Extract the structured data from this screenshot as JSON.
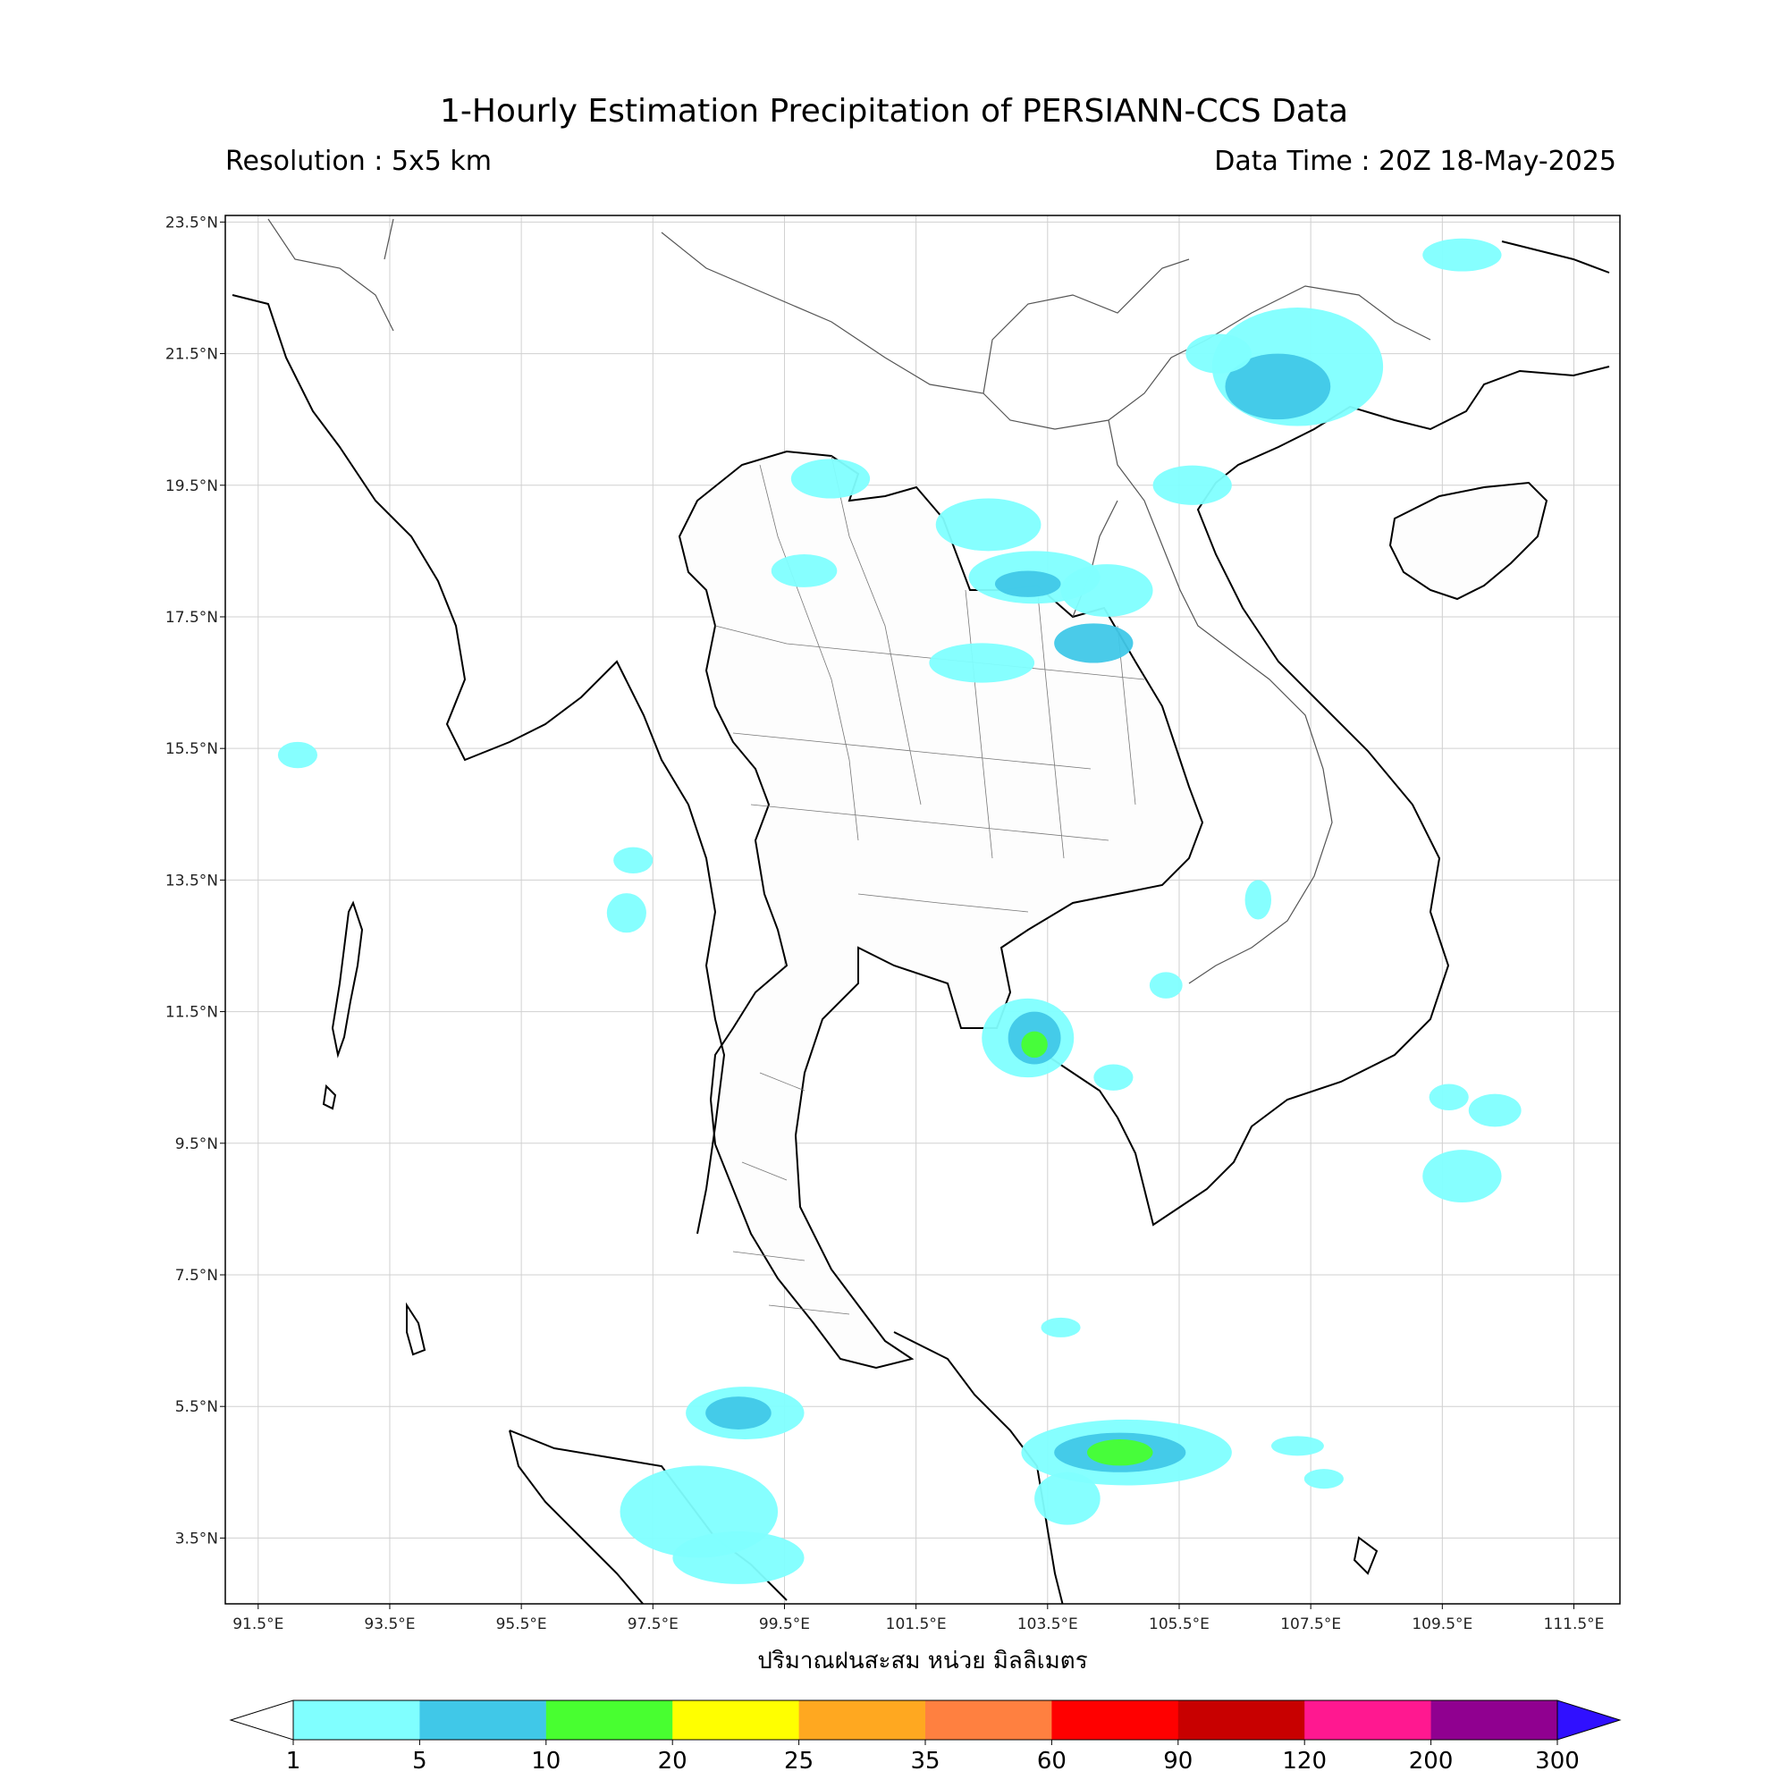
{
  "title": "1-Hourly Estimation Precipitation of PERSIANN-CCS Data",
  "resolution": "Resolution : 5x5 km",
  "data_time": "Data Time : 20Z 18-May-2025",
  "map": {
    "lon_range": [
      91.0,
      112.2
    ],
    "lat_range": [
      2.5,
      23.6
    ],
    "lon_ticks": [
      {
        "value": 91.5,
        "label": "91.5°E"
      },
      {
        "value": 93.5,
        "label": "93.5°E"
      },
      {
        "value": 95.5,
        "label": "95.5°E"
      },
      {
        "value": 97.5,
        "label": "97.5°E"
      },
      {
        "value": 99.5,
        "label": "99.5°E"
      },
      {
        "value": 101.5,
        "label": "101.5°E"
      },
      {
        "value": 103.5,
        "label": "103.5°E"
      },
      {
        "value": 105.5,
        "label": "105.5°E"
      },
      {
        "value": 107.5,
        "label": "107.5°E"
      },
      {
        "value": 109.5,
        "label": "109.5°E"
      },
      {
        "value": 111.5,
        "label": "111.5°E"
      }
    ],
    "lat_ticks": [
      {
        "value": 23.5,
        "label": "23.5°N"
      },
      {
        "value": 21.5,
        "label": "21.5°N"
      },
      {
        "value": 19.5,
        "label": "19.5°N"
      },
      {
        "value": 17.5,
        "label": "17.5°N"
      },
      {
        "value": 15.5,
        "label": "15.5°N"
      },
      {
        "value": 13.5,
        "label": "13.5°N"
      },
      {
        "value": 11.5,
        "label": "11.5°N"
      },
      {
        "value": 9.5,
        "label": "9.5°N"
      },
      {
        "value": 7.5,
        "label": "7.5°N"
      },
      {
        "value": 5.5,
        "label": "5.5°N"
      },
      {
        "value": 3.5,
        "label": "3.5°N"
      }
    ],
    "grid": true,
    "xlabel": "ปริมาณฝนสะสม หน่วย มิลลิเมตร"
  },
  "colorbar": {
    "levels": [
      "1",
      "5",
      "10",
      "20",
      "25",
      "35",
      "60",
      "90",
      "120",
      "200",
      "300"
    ],
    "colors": [
      "#80ffff",
      "#40c8e8",
      "#48ff30",
      "#ffff00",
      "#ffa820",
      "#ff8040",
      "#ff0000",
      "#c80000",
      "#ff1890",
      "#900090"
    ],
    "under_color": "#ffffff",
    "over_color": "#3010ff"
  },
  "rain_cells": [
    {
      "lon": 107.3,
      "lat": 21.3,
      "rx": 1.3,
      "ry": 0.9,
      "level": 1
    },
    {
      "lon": 107.0,
      "lat": 21.0,
      "rx": 0.8,
      "ry": 0.5,
      "level": 2
    },
    {
      "lon": 106.1,
      "lat": 21.5,
      "rx": 0.5,
      "ry": 0.3,
      "level": 1
    },
    {
      "lon": 109.8,
      "lat": 23.0,
      "rx": 0.6,
      "ry": 0.25,
      "level": 1
    },
    {
      "lon": 105.7,
      "lat": 19.5,
      "rx": 0.6,
      "ry": 0.3,
      "level": 1
    },
    {
      "lon": 102.6,
      "lat": 18.9,
      "rx": 0.8,
      "ry": 0.4,
      "level": 1
    },
    {
      "lon": 103.3,
      "lat": 18.1,
      "rx": 1.0,
      "ry": 0.4,
      "level": 1
    },
    {
      "lon": 103.2,
      "lat": 18.0,
      "rx": 0.5,
      "ry": 0.2,
      "level": 2
    },
    {
      "lon": 104.4,
      "lat": 17.9,
      "rx": 0.7,
      "ry": 0.4,
      "level": 1
    },
    {
      "lon": 104.2,
      "lat": 17.1,
      "rx": 0.6,
      "ry": 0.3,
      "level": 2
    },
    {
      "lon": 102.5,
      "lat": 16.8,
      "rx": 0.8,
      "ry": 0.3,
      "level": 1
    },
    {
      "lon": 100.2,
      "lat": 19.6,
      "rx": 0.6,
      "ry": 0.3,
      "level": 1
    },
    {
      "lon": 99.8,
      "lat": 18.2,
      "rx": 0.5,
      "ry": 0.25,
      "level": 1
    },
    {
      "lon": 103.2,
      "lat": 11.1,
      "rx": 0.7,
      "ry": 0.6,
      "level": 1
    },
    {
      "lon": 103.3,
      "lat": 11.1,
      "rx": 0.4,
      "ry": 0.4,
      "level": 2
    },
    {
      "lon": 103.3,
      "lat": 11.0,
      "rx": 0.2,
      "ry": 0.2,
      "level": 3
    },
    {
      "lon": 104.5,
      "lat": 10.5,
      "rx": 0.3,
      "ry": 0.2,
      "level": 1
    },
    {
      "lon": 104.7,
      "lat": 4.8,
      "rx": 1.6,
      "ry": 0.5,
      "level": 1
    },
    {
      "lon": 104.6,
      "lat": 4.8,
      "rx": 1.0,
      "ry": 0.3,
      "level": 2
    },
    {
      "lon": 104.6,
      "lat": 4.8,
      "rx": 0.5,
      "ry": 0.2,
      "level": 3
    },
    {
      "lon": 103.8,
      "lat": 4.1,
      "rx": 0.5,
      "ry": 0.4,
      "level": 1
    },
    {
      "lon": 98.9,
      "lat": 5.4,
      "rx": 0.9,
      "ry": 0.4,
      "level": 1
    },
    {
      "lon": 98.8,
      "lat": 5.4,
      "rx": 0.5,
      "ry": 0.25,
      "level": 2
    },
    {
      "lon": 98.2,
      "lat": 3.9,
      "rx": 1.2,
      "ry": 0.7,
      "level": 1
    },
    {
      "lon": 98.8,
      "lat": 3.2,
      "rx": 1.0,
      "ry": 0.4,
      "level": 1
    },
    {
      "lon": 97.1,
      "lat": 13.0,
      "rx": 0.3,
      "ry": 0.3,
      "level": 1
    },
    {
      "lon": 97.2,
      "lat": 13.8,
      "rx": 0.3,
      "ry": 0.2,
      "level": 1
    },
    {
      "lon": 106.7,
      "lat": 13.2,
      "rx": 0.2,
      "ry": 0.3,
      "level": 1
    },
    {
      "lon": 109.8,
      "lat": 9.0,
      "rx": 0.6,
      "ry": 0.4,
      "level": 1
    },
    {
      "lon": 110.3,
      "lat": 10.0,
      "rx": 0.4,
      "ry": 0.25,
      "level": 1
    },
    {
      "lon": 109.6,
      "lat": 10.2,
      "rx": 0.3,
      "ry": 0.2,
      "level": 1
    },
    {
      "lon": 107.3,
      "lat": 4.9,
      "rx": 0.4,
      "ry": 0.15,
      "level": 1
    },
    {
      "lon": 107.7,
      "lat": 4.4,
      "rx": 0.3,
      "ry": 0.15,
      "level": 1
    },
    {
      "lon": 92.1,
      "lat": 15.4,
      "rx": 0.3,
      "ry": 0.2,
      "level": 1
    },
    {
      "lon": 105.3,
      "lat": 11.9,
      "rx": 0.25,
      "ry": 0.2,
      "level": 1
    },
    {
      "lon": 103.7,
      "lat": 6.7,
      "rx": 0.3,
      "ry": 0.15,
      "level": 1
    }
  ]
}
